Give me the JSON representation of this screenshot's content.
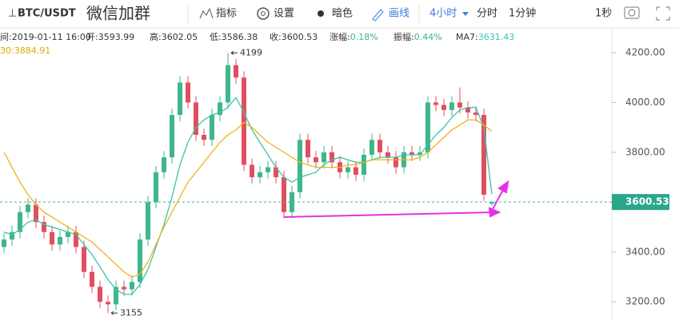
{
  "toolbar": {
    "symbol": "BTC/USDT",
    "group": "微信加群",
    "indicator": "指标",
    "settings": "设置",
    "dark": "暗色",
    "draw": "画线",
    "interval": "4小时",
    "timeshare": "分时",
    "one_minute": "1分钟",
    "one_second": "1秒"
  },
  "info": {
    "time": "间:2019-01-11 16:00",
    "items": [
      {
        "label": "开:",
        "value": "3593.99"
      },
      {
        "label": "高:",
        "value": "3602.05"
      },
      {
        "label": "低:",
        "value": "3586.38"
      },
      {
        "label": "收:",
        "value": "3600.53"
      },
      {
        "label": "涨幅:",
        "value": "0.18%"
      },
      {
        "label": "振幅:",
        "value": "0.44%"
      },
      {
        "label": "MA7:",
        "value": "3631.43"
      }
    ],
    "ma30": "30:3884.91"
  },
  "chart_data": {
    "type": "candlestick",
    "up_color": "#3fb68b",
    "down_color": "#e04f5f",
    "open": [
      3420,
      3450,
      3480,
      3560,
      3590,
      3520,
      3480,
      3430,
      3460,
      3480,
      3420,
      3320,
      3260,
      3200,
      3190,
      3260,
      3250,
      3280,
      3450,
      3600,
      3720,
      3780,
      3950,
      4080,
      4000,
      3870,
      3850,
      3950,
      4000,
      4150,
      4100,
      3750,
      3700,
      3720,
      3740,
      3700,
      3560,
      3640,
      3850,
      3780,
      3760,
      3800,
      3760,
      3720,
      3740,
      3710,
      3790,
      3850,
      3800,
      3780,
      3740,
      3800,
      3790,
      3800,
      4000,
      3990,
      3970,
      4000,
      3980,
      3960,
      3950,
      3593.99
    ],
    "high": [
      3475,
      3505,
      3585,
      3615,
      3615,
      3545,
      3505,
      3485,
      3505,
      3505,
      3445,
      3345,
      3285,
      3225,
      3285,
      3285,
      3305,
      3475,
      3625,
      3745,
      3805,
      3975,
      4105,
      4105,
      4025,
      3895,
      3975,
      4025,
      4199,
      4175,
      4125,
      3775,
      3745,
      3765,
      3765,
      3725,
      3665,
      3875,
      3875,
      3805,
      3825,
      3825,
      3785,
      3765,
      3765,
      3815,
      3875,
      3875,
      3825,
      3805,
      3825,
      3825,
      3825,
      4025,
      4025,
      4015,
      4025,
      4060,
      4005,
      3985,
      3975,
      3602.05
    ],
    "low": [
      3395,
      3425,
      3455,
      3535,
      3495,
      3455,
      3405,
      3405,
      3435,
      3395,
      3295,
      3235,
      3175,
      3155,
      3165,
      3225,
      3225,
      3255,
      3425,
      3575,
      3695,
      3755,
      3925,
      3975,
      3845,
      3825,
      3825,
      3925,
      3975,
      4075,
      3725,
      3675,
      3675,
      3695,
      3675,
      3535,
      3535,
      3615,
      3755,
      3735,
      3735,
      3735,
      3695,
      3695,
      3685,
      3685,
      3765,
      3775,
      3755,
      3715,
      3715,
      3765,
      3765,
      3775,
      3965,
      3945,
      3945,
      3955,
      3935,
      3925,
      3605,
      3586.38
    ],
    "close": [
      3450,
      3480,
      3560,
      3590,
      3520,
      3480,
      3430,
      3460,
      3480,
      3420,
      3320,
      3260,
      3200,
      3190,
      3260,
      3250,
      3280,
      3450,
      3600,
      3720,
      3780,
      3950,
      4080,
      4000,
      3870,
      3850,
      3950,
      4000,
      4150,
      4100,
      3750,
      3700,
      3720,
      3740,
      3700,
      3560,
      3640,
      3850,
      3780,
      3760,
      3800,
      3760,
      3720,
      3740,
      3710,
      3790,
      3850,
      3800,
      3780,
      3740,
      3800,
      3790,
      3800,
      4000,
      3990,
      3970,
      4000,
      3980,
      3960,
      3950,
      3630,
      3600.53
    ],
    "series": [
      {
        "color": "#3cc3ad",
        "values": [
          3480,
          3470,
          3490,
          3520,
          3530,
          3510,
          3500,
          3490,
          3480,
          3470,
          3430,
          3390,
          3340,
          3290,
          3250,
          3230,
          3230,
          3270,
          3330,
          3420,
          3510,
          3620,
          3750,
          3840,
          3900,
          3930,
          3950,
          3960,
          3980,
          4020,
          3960,
          3890,
          3840,
          3790,
          3740,
          3700,
          3680,
          3700,
          3710,
          3720,
          3750,
          3770,
          3780,
          3770,
          3760,
          3760,
          3770,
          3780,
          3780,
          3780,
          3790,
          3790,
          3790,
          3830,
          3870,
          3900,
          3940,
          3970,
          3980,
          3980,
          3900,
          3631.43
        ]
      },
      {
        "color": "#f0b31a",
        "values": [
          3800,
          3740,
          3680,
          3630,
          3590,
          3560,
          3540,
          3520,
          3500,
          3480,
          3460,
          3440,
          3410,
          3380,
          3350,
          3320,
          3300,
          3310,
          3360,
          3430,
          3500,
          3560,
          3620,
          3680,
          3720,
          3760,
          3800,
          3840,
          3870,
          3890,
          3920,
          3900,
          3870,
          3840,
          3820,
          3800,
          3780,
          3760,
          3750,
          3740,
          3740,
          3740,
          3740,
          3750,
          3750,
          3760,
          3770,
          3770,
          3770,
          3770,
          3770,
          3770,
          3780,
          3800,
          3830,
          3860,
          3890,
          3910,
          3930,
          3930,
          3910,
          3884.91
        ]
      }
    ],
    "high_label": "4199",
    "low_label": "3155",
    "price_label": "3600.53",
    "ylim": [
      3127,
      4296
    ],
    "yticks": [
      {
        "value": 3200,
        "label": "3200.00"
      },
      {
        "value": 3400,
        "label": "3400.00"
      },
      {
        "value": 3600,
        "label": "3600.00"
      },
      {
        "value": 3800,
        "label": "3800.00"
      },
      {
        "value": 4000,
        "label": "4000.00"
      },
      {
        "value": 4200,
        "label": "4200.00"
      }
    ]
  }
}
